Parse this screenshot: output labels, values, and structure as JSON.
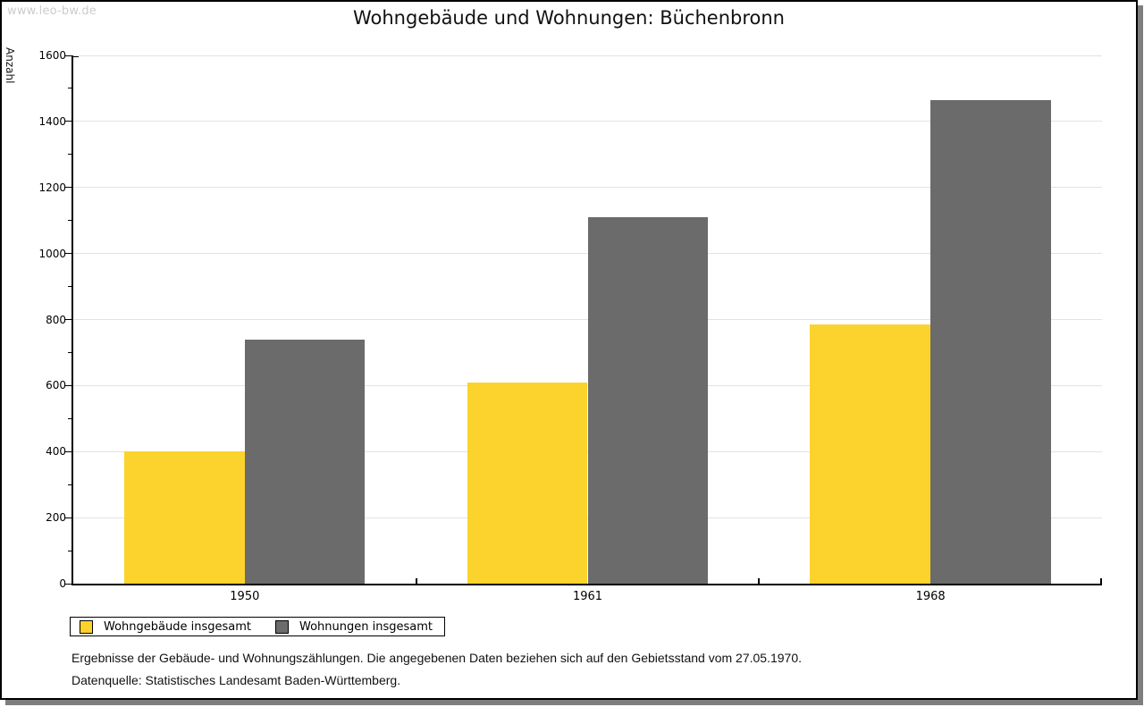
{
  "watermark": "www.leo-bw.de",
  "chart_data": {
    "type": "bar",
    "title": "Wohngebäude und Wohnungen: Büchenbronn",
    "xlabel": "",
    "ylabel": "Anzahl",
    "categories": [
      "1950",
      "1961",
      "1968"
    ],
    "series": [
      {
        "name": "Wohngebäude insgesamt",
        "color": "#FCD32C",
        "values": [
          400,
          610,
          785
        ]
      },
      {
        "name": "Wohnungen insgesamt",
        "color": "#6B6B6B",
        "values": [
          738,
          1111,
          1464
        ]
      }
    ],
    "ylim": [
      0,
      1600
    ],
    "ytick_major": 200,
    "ytick_minor": 100,
    "grid": true,
    "legend_position": "bottom-left"
  },
  "footnotes": {
    "line1": "Ergebnisse der Gebäude- und Wohnungszählungen. Die angegebenen Daten beziehen sich auf den Gebietsstand vom 27.05.1970.",
    "line2": "Datenquelle: Statistisches Landesamt Baden-Württemberg."
  }
}
